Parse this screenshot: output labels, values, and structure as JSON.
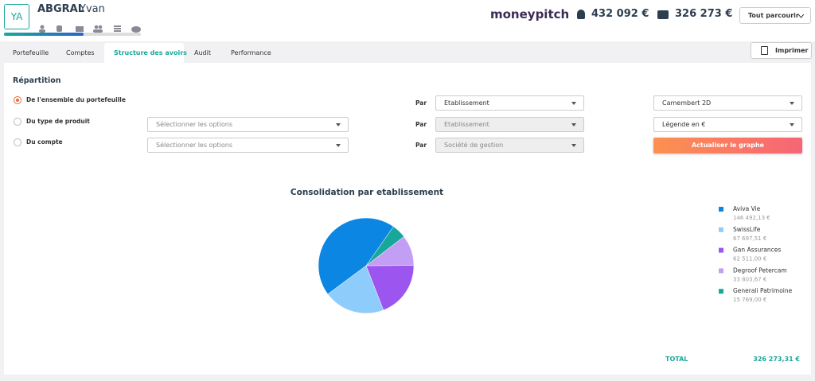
{
  "header": {
    "initials": "YA",
    "last_name": "ABGRAL",
    "first_name": "Yvan",
    "logo": "moneypitch",
    "amount_1": "432 092 €",
    "amount_2": "326 273 €",
    "browse_button": "Tout parcourir"
  },
  "tabs": [
    "Portefeuille",
    "Comptes",
    "Structure des avoirs",
    "Audit",
    "Performance"
  ],
  "print_button": "Imprimer",
  "form": {
    "title": "Répartition",
    "rows": [
      {
        "radio": "De l'ensemble du portefeuille",
        "by_label": "Par",
        "by": "Etablissement"
      },
      {
        "radio": "Du type de produit",
        "by_label": "Par",
        "by": "Etablissement"
      },
      {
        "radio": "Du compte",
        "by_label": "Par",
        "by": "Société de gestion"
      }
    ],
    "option_selects": [
      "Sélectionner les options",
      "Sélectionner les options"
    ],
    "chart_settings": [
      "Camembert 2D",
      "Légende en €"
    ],
    "refresh_button": "Actualiser le graphe"
  },
  "chart_data": {
    "type": "pie",
    "title": "Consolidation par etablissement",
    "categories": [
      "Aviva Vie",
      "SwissLife",
      "Gan Assurances",
      "Degroof Petercam",
      "Generali Patrimoine"
    ],
    "values": [
      146492.13,
      67697.51,
      62511.0,
      33803.67,
      15769.0
    ],
    "value_labels": [
      "146 492,13 €",
      "67 697,51 €",
      "62 511,00 €",
      "33 803,67 €",
      "15 769,00 €"
    ],
    "colors": [
      "#0b86e3",
      "#8ecdfb",
      "#9c55ef",
      "#c39ef5",
      "#17a89b"
    ]
  },
  "total": {
    "label": "TOTAL",
    "value": "326 273,31 €"
  }
}
